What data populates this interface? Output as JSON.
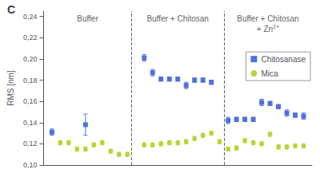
{
  "chart_data": {
    "type": "scatter",
    "title": "C",
    "ylabel": "RMS [nm]",
    "xlim": [
      0,
      32
    ],
    "ylim": [
      0.1,
      0.245
    ],
    "yticks": [
      {
        "value": 0.1,
        "label": "0,10"
      },
      {
        "value": 0.12,
        "label": "0,12"
      },
      {
        "value": 0.14,
        "label": "0,14"
      },
      {
        "value": 0.16,
        "label": "0,16"
      },
      {
        "value": 0.18,
        "label": "0,18"
      },
      {
        "value": 0.2,
        "label": "0,20"
      },
      {
        "value": 0.22,
        "label": "0,22"
      },
      {
        "value": 0.24,
        "label": "0,24"
      }
    ],
    "tick_labels": "y",
    "grid": false,
    "legend": "upper right",
    "vlines": [
      10.5,
      21.5
    ],
    "annotations": [
      {
        "text": "Buffer",
        "x": 5.25
      },
      {
        "text": "Buffer + Chitosan",
        "x": 16.0
      },
      {
        "text": "Buffer + Chitosan\n+ Zn",
        "superscript": "2+",
        "x": 26.75
      }
    ],
    "series": [
      {
        "name": "Chitosanase",
        "marker": "square",
        "x": [
          1,
          5,
          12,
          13,
          14,
          15,
          16,
          17,
          18,
          19,
          20,
          22,
          23,
          24,
          25,
          26,
          27,
          28,
          29,
          30,
          31
        ],
        "values": [
          0.131,
          0.138,
          0.201,
          0.187,
          0.181,
          0.181,
          0.181,
          0.175,
          0.18,
          0.18,
          0.178,
          0.142,
          0.143,
          0.143,
          0.143,
          0.159,
          0.158,
          0.155,
          0.149,
          0.147,
          0.146
        ],
        "errors": [
          0.003,
          0.01,
          0.003,
          0.003,
          0.002,
          0.002,
          0.002,
          0.003,
          0.002,
          0.002,
          0.002,
          0.003,
          0.002,
          0.002,
          0.002,
          0.003,
          0.002,
          0.002,
          0.003,
          0.002,
          0.003
        ]
      },
      {
        "name": "Mica",
        "marker": "circle",
        "x": [
          2,
          3,
          4,
          5,
          6,
          7,
          8,
          9,
          10,
          12,
          13,
          14,
          15,
          16,
          17,
          18,
          19,
          20,
          21,
          22,
          23,
          24,
          25,
          26,
          27,
          28,
          29,
          30,
          31
        ],
        "values": [
          0.121,
          0.121,
          0.115,
          0.115,
          0.119,
          0.121,
          0.113,
          0.11,
          0.11,
          0.119,
          0.119,
          0.12,
          0.121,
          0.121,
          0.122,
          0.125,
          0.128,
          0.13,
          0.122,
          0.115,
          0.116,
          0.123,
          0.121,
          0.12,
          0.129,
          0.117,
          0.117,
          0.118,
          0.118
        ],
        "errors": [
          0.002,
          0.002,
          0.002,
          0.002,
          0.002,
          0.002,
          0.002,
          0.002,
          0.002,
          0.002,
          0.002,
          0.002,
          0.002,
          0.002,
          0.002,
          0.002,
          0.002,
          0.002,
          0.002,
          0.002,
          0.002,
          0.002,
          0.002,
          0.002,
          0.002,
          0.002,
          0.002,
          0.002,
          0.002
        ]
      }
    ]
  }
}
